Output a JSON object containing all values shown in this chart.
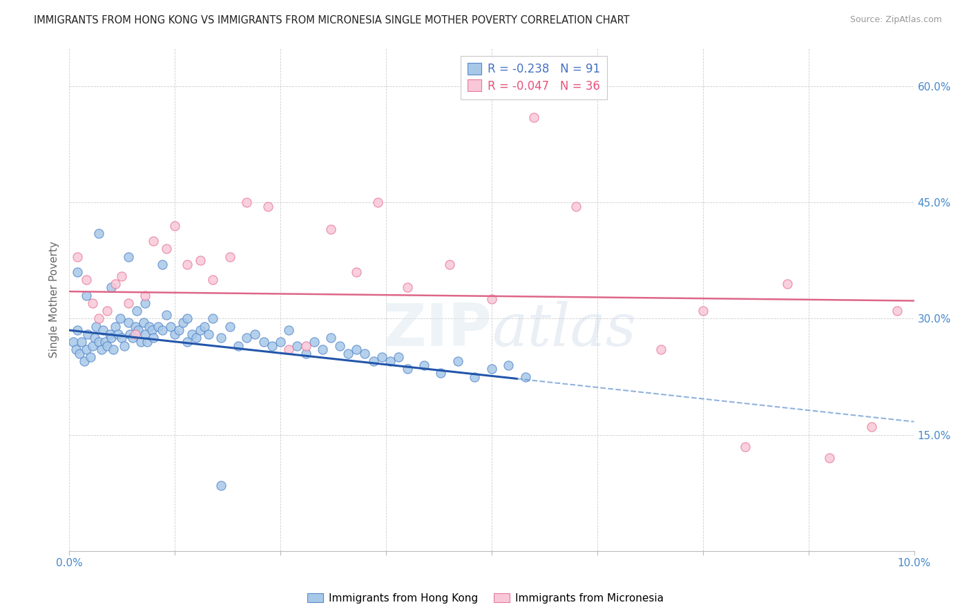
{
  "title": "IMMIGRANTS FROM HONG KONG VS IMMIGRANTS FROM MICRONESIA SINGLE MOTHER POVERTY CORRELATION CHART",
  "source": "Source: ZipAtlas.com",
  "legend_hk": "Immigrants from Hong Kong",
  "legend_mic": "Immigrants from Micronesia",
  "r_hk": "-0.238",
  "n_hk": "91",
  "r_mic": "-0.047",
  "n_mic": "36",
  "xlim": [
    0.0,
    10.0
  ],
  "ylim": [
    0.0,
    65.0
  ],
  "yticks": [
    15.0,
    30.0,
    45.0,
    60.0
  ],
  "xticks": [
    0.0,
    1.25,
    2.5,
    3.75,
    5.0,
    6.25,
    7.5,
    8.75,
    10.0
  ],
  "color_hk_fill": "#a8c8e8",
  "color_hk_edge": "#5588cc",
  "color_hk_line": "#2255aa",
  "color_mic_fill": "#f8c8d8",
  "color_mic_edge": "#e87898",
  "color_mic_line": "#dd6688",
  "background": "#ffffff",
  "watermark": "ZIPatlas",
  "hk_x": [
    0.05,
    0.08,
    0.1,
    0.12,
    0.15,
    0.18,
    0.2,
    0.22,
    0.25,
    0.28,
    0.3,
    0.32,
    0.35,
    0.38,
    0.4,
    0.42,
    0.45,
    0.48,
    0.5,
    0.52,
    0.55,
    0.58,
    0.6,
    0.62,
    0.65,
    0.7,
    0.72,
    0.75,
    0.78,
    0.8,
    0.82,
    0.85,
    0.88,
    0.9,
    0.92,
    0.95,
    0.98,
    1.0,
    1.05,
    1.1,
    1.15,
    1.2,
    1.25,
    1.3,
    1.35,
    1.4,
    1.45,
    1.5,
    1.55,
    1.6,
    1.65,
    1.7,
    1.8,
    1.9,
    2.0,
    2.1,
    2.2,
    2.3,
    2.4,
    2.5,
    2.6,
    2.7,
    2.8,
    2.9,
    3.0,
    3.1,
    3.2,
    3.3,
    3.4,
    3.5,
    3.6,
    3.7,
    3.8,
    3.9,
    4.0,
    4.2,
    4.4,
    4.6,
    4.8,
    5.0,
    5.2,
    5.4,
    0.1,
    0.2,
    0.35,
    0.5,
    0.7,
    0.9,
    1.1,
    1.4,
    1.8
  ],
  "hk_y": [
    27.0,
    26.0,
    28.5,
    25.5,
    27.0,
    24.5,
    26.0,
    28.0,
    25.0,
    26.5,
    27.5,
    29.0,
    27.0,
    26.0,
    28.5,
    27.0,
    26.5,
    28.0,
    27.5,
    26.0,
    29.0,
    28.0,
    30.0,
    27.5,
    26.5,
    29.5,
    28.0,
    27.5,
    29.0,
    31.0,
    28.5,
    27.0,
    29.5,
    28.0,
    27.0,
    29.0,
    28.5,
    27.5,
    29.0,
    28.5,
    30.5,
    29.0,
    28.0,
    28.5,
    29.5,
    30.0,
    28.0,
    27.5,
    28.5,
    29.0,
    28.0,
    30.0,
    27.5,
    29.0,
    26.5,
    27.5,
    28.0,
    27.0,
    26.5,
    27.0,
    28.5,
    26.5,
    25.5,
    27.0,
    26.0,
    27.5,
    26.5,
    25.5,
    26.0,
    25.5,
    24.5,
    25.0,
    24.5,
    25.0,
    23.5,
    24.0,
    23.0,
    24.5,
    22.5,
    23.5,
    24.0,
    22.5,
    36.0,
    33.0,
    41.0,
    34.0,
    38.0,
    32.0,
    37.0,
    27.0,
    8.5
  ],
  "mic_x": [
    0.1,
    0.2,
    0.28,
    0.35,
    0.45,
    0.55,
    0.62,
    0.7,
    0.78,
    0.9,
    1.0,
    1.15,
    1.25,
    1.4,
    1.55,
    1.7,
    1.9,
    2.1,
    2.35,
    2.6,
    2.8,
    3.1,
    3.4,
    3.65,
    4.0,
    4.5,
    5.0,
    5.5,
    6.0,
    7.0,
    7.5,
    8.0,
    8.5,
    9.0,
    9.5,
    9.8
  ],
  "mic_y": [
    38.0,
    35.0,
    32.0,
    30.0,
    31.0,
    34.5,
    35.5,
    32.0,
    28.0,
    33.0,
    40.0,
    39.0,
    42.0,
    37.0,
    37.5,
    35.0,
    38.0,
    45.0,
    44.5,
    26.0,
    26.5,
    41.5,
    36.0,
    45.0,
    34.0,
    37.0,
    32.5,
    56.0,
    44.5,
    26.0,
    31.0,
    13.5,
    34.5,
    12.0,
    16.0,
    31.0
  ],
  "hk_line_intercept": 28.5,
  "hk_line_slope": -1.18,
  "mic_line_intercept": 33.5,
  "mic_line_slope": -0.12,
  "hk_solid_end": 5.3
}
